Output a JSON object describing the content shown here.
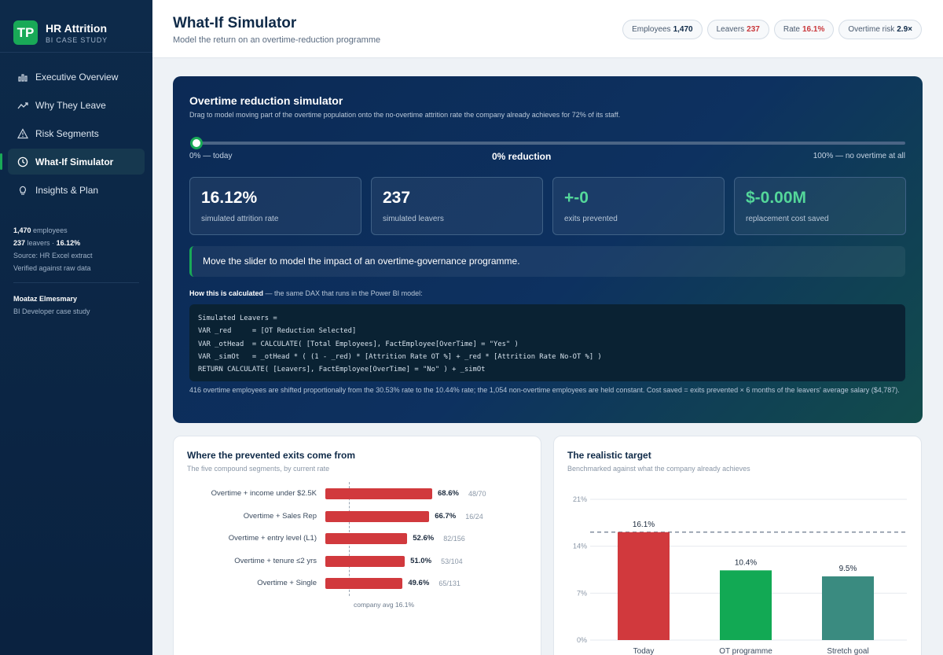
{
  "brand": {
    "logo": "TP",
    "title": "HR Attrition",
    "subtitle": "BI CASE STUDY"
  },
  "nav": [
    {
      "label": "Executive Overview",
      "icon": "bar-chart-icon",
      "active": false
    },
    {
      "label": "Why They Leave",
      "icon": "trend-line-icon",
      "active": false
    },
    {
      "label": "Risk Segments",
      "icon": "warning-icon",
      "active": false
    },
    {
      "label": "What-If Simulator",
      "icon": "clock-icon",
      "active": true
    },
    {
      "label": "Insights & Plan",
      "icon": "lightbulb-icon",
      "active": false
    }
  ],
  "side_stats": {
    "employees_num": "1,470",
    "employees_word": "employees",
    "leavers_num": "237",
    "leavers_word": "leavers ·",
    "rate": "16.12%",
    "source": "Source: HR Excel extract",
    "verified": "Verified against raw data"
  },
  "author": {
    "name": "Moataz Elmesmary",
    "role": "BI Developer case study"
  },
  "header": {
    "title": "What-If Simulator",
    "subtitle": "Model the return on an overtime-reduction programme"
  },
  "pills": [
    {
      "label": "Employees",
      "value": "1,470",
      "tone": "dark"
    },
    {
      "label": "Leavers",
      "value": "237",
      "tone": "red"
    },
    {
      "label": "Rate",
      "value": "16.1%",
      "tone": "red"
    },
    {
      "label": "Overtime risk",
      "value": "2.9×",
      "tone": "dark"
    }
  ],
  "sim": {
    "title": "Overtime reduction simulator",
    "description": "Drag to model moving part of the overtime population onto the no-overtime attrition rate the company already achieves for 72% of its staff.",
    "slider_value": 0,
    "slider_left": "0% — today",
    "slider_mid": "0% reduction",
    "slider_right": "100% — no overtime at all",
    "kpis": [
      {
        "value": "16.12%",
        "label": "simulated attrition rate",
        "tone": "white"
      },
      {
        "value": "237",
        "label": "simulated leavers",
        "tone": "white"
      },
      {
        "value": "+-0",
        "label": "exits prevented",
        "tone": "green"
      },
      {
        "value": "$-0.00M",
        "label": "replacement cost saved",
        "tone": "green"
      }
    ],
    "callout": "Move the slider to model the impact of an overtime-governance programme.",
    "how_bold": "How this is calculated",
    "how_rest": " — the same DAX that runs in the Power BI model:",
    "code": "Simulated Leavers =\nVAR _red     = [OT Reduction Selected]\nVAR _otHead  = CALCULATE( [Total Employees], FactEmployee[OverTime] = \"Yes\" )\nVAR _simOt   = _otHead * ( (1 - _red) * [Attrition Rate OT %] + _red * [Attrition Rate No-OT %] )\nRETURN CALCULATE( [Leavers], FactEmployee[OverTime] = \"No\" ) + _simOt",
    "footnote": "416 overtime employees are shifted proportionally from the 30.53% rate to the 10.44% rate; the 1,054 non-overtime employees are held constant. Cost saved = exits prevented × 6 months of the leavers' average salary ($4,787)."
  },
  "segments_card": {
    "title": "Where the prevented exits come from",
    "subtitle": "The five compound segments, by current rate",
    "avg_label": "company avg 16.1%",
    "avg_rate": 16.1,
    "rows": [
      {
        "label": "Overtime + income under $2.5K",
        "rate": 68.6,
        "rate_label": "68.6%",
        "count": "48/70"
      },
      {
        "label": "Overtime + Sales Rep",
        "rate": 66.7,
        "rate_label": "66.7%",
        "count": "16/24"
      },
      {
        "label": "Overtime + entry level (L1)",
        "rate": 52.6,
        "rate_label": "52.6%",
        "count": "82/156"
      },
      {
        "label": "Overtime + tenure ≤2 yrs",
        "rate": 51.0,
        "rate_label": "51.0%",
        "count": "53/104"
      },
      {
        "label": "Overtime + Single",
        "rate": 49.6,
        "rate_label": "49.6%",
        "count": "65/131"
      }
    ]
  },
  "target_card": {
    "title": "The realistic target",
    "subtitle": "Benchmarked against what the company already achieves"
  },
  "chart_data": {
    "type": "bar",
    "categories": [
      "Today",
      "OT programme",
      "Stretch goal"
    ],
    "values": [
      16.1,
      10.4,
      9.5
    ],
    "value_labels": [
      "16.1%",
      "10.4%",
      "9.5%"
    ],
    "colors": [
      "#d1393d",
      "#12a954",
      "#3a8b80"
    ],
    "yticks": [
      "0%",
      "7%",
      "14%",
      "21%"
    ],
    "ylim": [
      0,
      21
    ],
    "reference_line": 16.1,
    "grid": true
  }
}
